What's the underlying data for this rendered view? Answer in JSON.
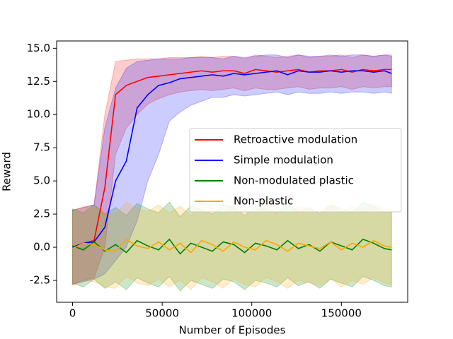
{
  "chart_data": {
    "type": "line",
    "xlabel": "Number of Episodes",
    "ylabel": "Reward",
    "xlim": [
      -8900,
      187000
    ],
    "ylim": [
      -4.15,
      15.55
    ],
    "xticks": [
      0,
      50000,
      100000,
      150000
    ],
    "yticks": [
      -2.5,
      {
        "value": 0,
        "label": "0.0"
      },
      2.5,
      {
        "value": 5,
        "label": "5.0"
      },
      7.5,
      {
        "value": 10,
        "label": "10.0"
      },
      12.5,
      {
        "value": 15,
        "label": "15.0"
      }
    ],
    "legend": "center right",
    "x": [
      0,
      6000,
      12000,
      18000,
      24000,
      30000,
      36000,
      42000,
      48000,
      54000,
      60000,
      66000,
      72000,
      78000,
      84000,
      90000,
      96000,
      102000,
      108000,
      114000,
      120000,
      126000,
      132000,
      138000,
      144000,
      150000,
      156000,
      162000,
      168000,
      174000,
      178000
    ],
    "series": [
      {
        "name": "Retroactive modulation",
        "color": "#ff0000",
        "values": [
          0,
          0.3,
          0.5,
          4.5,
          11.5,
          12.2,
          12.5,
          12.8,
          12.9,
          13.0,
          13.1,
          13.2,
          13.3,
          13.2,
          13.3,
          13.3,
          13.1,
          13.4,
          13.3,
          13.2,
          13.3,
          13.4,
          13.2,
          13.3,
          13.3,
          13.4,
          13.2,
          13.4,
          13.3,
          13.4,
          13.4
        ],
        "band": {
          "lower": [
            -2.8,
            -2.5,
            -2.3,
            0,
            7,
            9,
            10,
            10.8,
            11.2,
            11.5,
            11.7,
            11.8,
            11.9,
            11.8,
            11.9,
            12.0,
            11.8,
            12.0,
            11.9,
            11.9,
            12.0,
            12.1,
            11.9,
            12.0,
            12.0,
            12.1,
            11.9,
            12.1,
            12.0,
            12.1,
            12.1
          ],
          "upper": [
            2.8,
            3.0,
            3.2,
            10,
            14,
            14.1,
            14.2,
            14.2,
            14.2,
            14.3,
            14.3,
            14.3,
            14.4,
            14.3,
            14.4,
            14.4,
            14.2,
            14.5,
            14.4,
            14.3,
            14.4,
            14.5,
            14.3,
            14.4,
            14.4,
            14.5,
            14.3,
            14.5,
            14.4,
            14.5,
            14.5
          ]
        }
      },
      {
        "name": "Simple modulation",
        "color": "#0000ff",
        "values": [
          0,
          0.3,
          0.4,
          1.5,
          5,
          6.5,
          10.5,
          11.5,
          12.2,
          12.4,
          12.7,
          12.8,
          12.9,
          13.0,
          12.9,
          13.1,
          13.0,
          13.1,
          13.2,
          13.3,
          13.0,
          13.3,
          13.2,
          13.2,
          13.3,
          13.2,
          13.3,
          13.3,
          13.2,
          13.3,
          13.1
        ],
        "band": {
          "lower": [
            -2.8,
            -2.6,
            -2.4,
            -2.0,
            -1.0,
            0,
            2,
            5,
            7,
            9.5,
            10.2,
            10.7,
            11.0,
            11.3,
            11.3,
            11.5,
            11.4,
            11.5,
            11.6,
            11.7,
            11.5,
            11.7,
            11.6,
            11.6,
            11.7,
            11.6,
            11.7,
            11.7,
            11.6,
            11.7,
            11.6
          ],
          "upper": [
            2.8,
            3.0,
            3.2,
            9,
            12,
            13.5,
            14.0,
            14.1,
            14.2,
            14.2,
            14.2,
            14.3,
            14.3,
            14.3,
            14.2,
            14.4,
            14.3,
            14.4,
            14.5,
            14.5,
            14.3,
            14.5,
            14.4,
            14.4,
            14.5,
            14.4,
            14.5,
            14.5,
            14.4,
            14.5,
            14.4
          ]
        }
      },
      {
        "name": "Non-modulated plastic",
        "color": "#008000",
        "values": [
          0.1,
          -0.2,
          0.4,
          -0.3,
          0.2,
          -0.4,
          0.5,
          0.1,
          -0.2,
          0.6,
          -0.5,
          0.3,
          0.0,
          -0.3,
          0.4,
          0.2,
          -0.4,
          0.3,
          0.1,
          -0.2,
          0.5,
          -0.1,
          0.2,
          -0.3,
          0.4,
          0.1,
          -0.2,
          0.6,
          0.3,
          -0.1,
          -0.2
        ],
        "band": {
          "lower": [
            -2.7,
            -3.0,
            -2.4,
            -3.1,
            -2.6,
            -3.2,
            -2.3,
            -2.7,
            -3.0,
            -2.2,
            -3.3,
            -2.5,
            -2.8,
            -3.1,
            -2.4,
            -2.6,
            -3.2,
            -2.5,
            -2.7,
            -3.0,
            -2.3,
            -2.9,
            -2.6,
            -3.1,
            -2.4,
            -2.7,
            -3.0,
            -2.2,
            -2.5,
            -2.9,
            -3.0
          ],
          "upper": [
            2.9,
            2.6,
            3.2,
            2.5,
            3.0,
            2.4,
            3.3,
            2.9,
            2.6,
            3.4,
            2.3,
            3.1,
            2.8,
            2.5,
            3.2,
            3.0,
            2.4,
            3.1,
            2.9,
            2.6,
            3.3,
            2.7,
            3.0,
            2.5,
            3.2,
            2.9,
            2.6,
            3.4,
            3.1,
            2.7,
            2.6
          ]
        }
      },
      {
        "name": "Non-plastic",
        "color": "#ffa500",
        "values": [
          -0.1,
          0.3,
          0.2,
          -0.2,
          -0.3,
          0.6,
          0.1,
          -0.1,
          0.4,
          -0.2,
          0.3,
          -0.4,
          0.5,
          0.2,
          -0.3,
          0.4,
          0.0,
          -0.2,
          0.5,
          0.2,
          -0.3,
          0.3,
          0.1,
          -0.1,
          0.4,
          -0.2,
          0.3,
          0.0,
          0.5,
          0.1,
          0.0
        ],
        "band": {
          "lower": [
            -2.9,
            -2.5,
            -2.6,
            -3.0,
            -3.1,
            -2.2,
            -2.7,
            -2.9,
            -2.4,
            -3.0,
            -2.5,
            -3.2,
            -2.3,
            -2.6,
            -3.1,
            -2.4,
            -2.8,
            -3.0,
            -2.3,
            -2.6,
            -3.1,
            -2.5,
            -2.7,
            -2.9,
            -2.4,
            -3.0,
            -2.5,
            -2.8,
            -2.3,
            -2.7,
            -2.8
          ],
          "upper": [
            2.7,
            3.1,
            3.0,
            2.6,
            2.5,
            3.4,
            2.9,
            2.7,
            3.2,
            2.6,
            3.1,
            2.4,
            3.3,
            3.0,
            2.5,
            3.2,
            2.8,
            2.6,
            3.3,
            3.0,
            2.5,
            3.1,
            2.9,
            2.7,
            3.2,
            2.6,
            3.1,
            2.8,
            3.3,
            2.9,
            2.8
          ]
        }
      }
    ]
  }
}
